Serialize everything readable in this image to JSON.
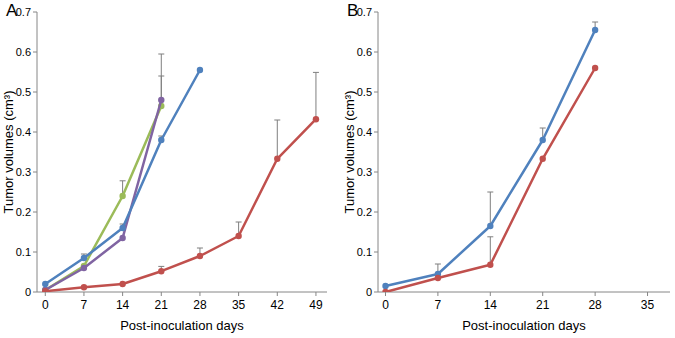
{
  "chart_data": [
    {
      "type": "line",
      "title": "A",
      "x_label": "Post-inoculation days",
      "y_label": "Tumor volumes (cm³)",
      "xlim": [
        -1.5,
        51
      ],
      "xticks": [
        0,
        7,
        14,
        21,
        28,
        35,
        42,
        49
      ],
      "ylim": [
        0,
        0.7
      ],
      "yticks": [
        0,
        0.1,
        0.2,
        0.3,
        0.4,
        0.5,
        0.6,
        0.7
      ],
      "grid": false,
      "series": [
        {
          "color": "#9bbb59",
          "marker": "circle",
          "x": [
            0,
            7,
            14,
            21
          ],
          "values": [
            0.005,
            0.065,
            0.24,
            0.465
          ],
          "errors": [
            null,
            null,
            0.038,
            0.075
          ]
        },
        {
          "color": "#8064a2",
          "marker": "circle",
          "x": [
            0,
            7,
            14,
            21
          ],
          "values": [
            0.005,
            0.06,
            0.135,
            0.48
          ],
          "errors": [
            null,
            null,
            null,
            0.115
          ]
        },
        {
          "color": "#4f81bd",
          "marker": "circle",
          "x": [
            0,
            7,
            14,
            21,
            28
          ],
          "values": [
            0.02,
            0.085,
            0.16,
            0.38,
            0.555
          ],
          "errors": [
            null,
            0.01,
            0.01,
            0.01,
            null
          ]
        },
        {
          "color": "#c0504d",
          "marker": "circle",
          "x": [
            0,
            7,
            14,
            21,
            28,
            35,
            42,
            49
          ],
          "values": [
            0.002,
            0.012,
            0.02,
            0.052,
            0.09,
            0.14,
            0.333,
            0.432
          ],
          "errors": [
            null,
            null,
            null,
            0.012,
            0.02,
            0.035,
            0.097,
            0.117
          ]
        }
      ]
    },
    {
      "type": "line",
      "title": "B",
      "x_label": "Post-inoculation days",
      "y_label": "Tumor volumes (cm³)",
      "xlim": [
        -1,
        38
      ],
      "xticks": [
        0,
        7,
        14,
        21,
        28,
        35
      ],
      "ylim": [
        0,
        0.7
      ],
      "yticks": [
        0,
        0.1,
        0.2,
        0.3,
        0.4,
        0.5,
        0.6,
        0.7
      ],
      "grid": false,
      "series": [
        {
          "color": "#4f81bd",
          "marker": "circle",
          "x": [
            0,
            7,
            14,
            21,
            28
          ],
          "values": [
            0.015,
            0.045,
            0.165,
            0.38,
            0.655
          ],
          "errors": [
            null,
            0.025,
            0.085,
            0.03,
            0.02
          ]
        },
        {
          "color": "#c0504d",
          "marker": "circle",
          "x": [
            0,
            7,
            14,
            21,
            28
          ],
          "values": [
            0.0,
            0.035,
            0.068,
            0.333,
            0.56
          ],
          "errors": [
            null,
            null,
            0.07,
            null,
            null
          ]
        }
      ]
    }
  ]
}
